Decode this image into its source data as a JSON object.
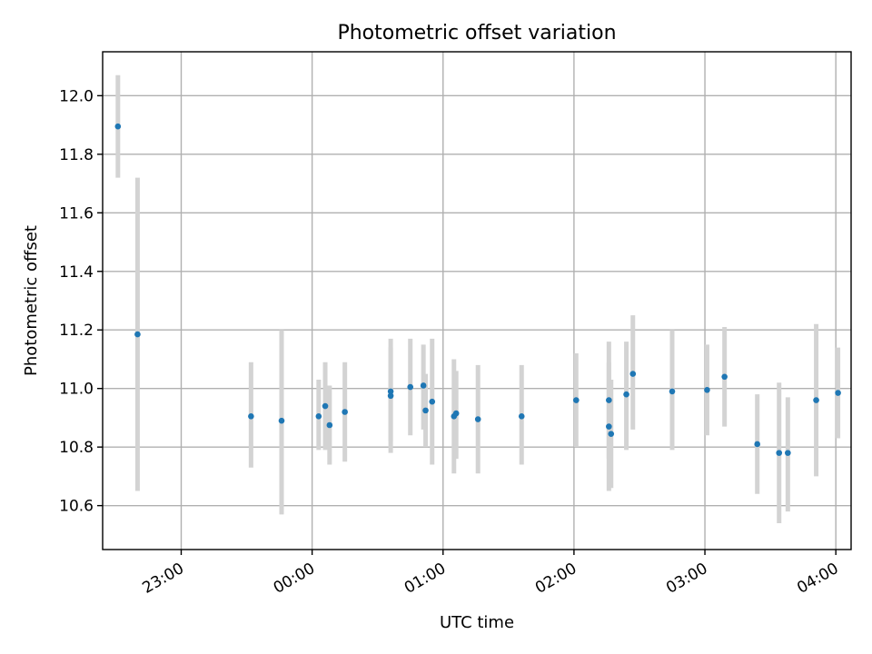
{
  "chart_data": {
    "type": "scatter",
    "title": "Photometric offset variation",
    "xlabel": "UTC time",
    "ylabel": "Photometric offset",
    "xlim": [
      "22:24",
      "04:07"
    ],
    "ylim": [
      10.45,
      12.15
    ],
    "x_ticks": [
      "23:00",
      "00:00",
      "01:00",
      "02:00",
      "03:00",
      "04:00"
    ],
    "y_ticks": [
      10.6,
      10.8,
      11.0,
      11.2,
      11.4,
      11.6,
      11.8,
      12.0
    ],
    "grid": true,
    "errorbar_color": "#d3d3d3",
    "marker_color": "#1f77b4",
    "points": [
      {
        "x": "22:31",
        "y": 11.895,
        "ylo": 11.72,
        "yhi": 12.07
      },
      {
        "x": "22:40",
        "y": 11.185,
        "ylo": 10.65,
        "yhi": 11.72
      },
      {
        "x": "23:32",
        "y": 10.905,
        "ylo": 10.73,
        "yhi": 11.09
      },
      {
        "x": "23:46",
        "y": 10.89,
        "ylo": 10.57,
        "yhi": 11.2
      },
      {
        "x": "00:03",
        "y": 10.905,
        "ylo": 10.79,
        "yhi": 11.03
      },
      {
        "x": "00:06",
        "y": 10.94,
        "ylo": 10.79,
        "yhi": 11.09
      },
      {
        "x": "00:08",
        "y": 10.875,
        "ylo": 10.74,
        "yhi": 11.01
      },
      {
        "x": "00:15",
        "y": 10.92,
        "ylo": 10.75,
        "yhi": 11.09
      },
      {
        "x": "00:36",
        "y": 10.975,
        "ylo": 10.78,
        "yhi": 11.17
      },
      {
        "x": "00:36",
        "y": 10.99,
        "ylo": 10.82,
        "yhi": 11.14
      },
      {
        "x": "00:45",
        "y": 11.005,
        "ylo": 10.84,
        "yhi": 11.17
      },
      {
        "x": "00:51",
        "y": 11.01,
        "ylo": 10.86,
        "yhi": 11.15
      },
      {
        "x": "00:52",
        "y": 10.925,
        "ylo": 10.8,
        "yhi": 11.05
      },
      {
        "x": "00:55",
        "y": 10.955,
        "ylo": 10.74,
        "yhi": 11.17
      },
      {
        "x": "01:05",
        "y": 10.905,
        "ylo": 10.71,
        "yhi": 11.1
      },
      {
        "x": "01:06",
        "y": 10.915,
        "ylo": 10.76,
        "yhi": 11.06
      },
      {
        "x": "01:16",
        "y": 10.895,
        "ylo": 10.71,
        "yhi": 11.08
      },
      {
        "x": "01:36",
        "y": 10.905,
        "ylo": 10.74,
        "yhi": 11.08
      },
      {
        "x": "02:01",
        "y": 10.96,
        "ylo": 10.8,
        "yhi": 11.12
      },
      {
        "x": "02:16",
        "y": 10.96,
        "ylo": 10.76,
        "yhi": 11.16
      },
      {
        "x": "02:16",
        "y": 10.87,
        "ylo": 10.65,
        "yhi": 11.09
      },
      {
        "x": "02:17",
        "y": 10.845,
        "ylo": 10.66,
        "yhi": 11.03
      },
      {
        "x": "02:24",
        "y": 10.98,
        "ylo": 10.79,
        "yhi": 11.16
      },
      {
        "x": "02:27",
        "y": 11.05,
        "ylo": 10.86,
        "yhi": 11.25
      },
      {
        "x": "02:45",
        "y": 10.99,
        "ylo": 10.79,
        "yhi": 11.2
      },
      {
        "x": "03:01",
        "y": 10.995,
        "ylo": 10.84,
        "yhi": 11.15
      },
      {
        "x": "03:09",
        "y": 11.04,
        "ylo": 10.87,
        "yhi": 11.21
      },
      {
        "x": "03:24",
        "y": 10.81,
        "ylo": 10.64,
        "yhi": 10.98
      },
      {
        "x": "03:34",
        "y": 10.78,
        "ylo": 10.54,
        "yhi": 11.02
      },
      {
        "x": "03:38",
        "y": 10.78,
        "ylo": 10.58,
        "yhi": 10.97
      },
      {
        "x": "03:51",
        "y": 10.96,
        "ylo": 10.7,
        "yhi": 11.22
      },
      {
        "x": "04:01",
        "y": 10.985,
        "ylo": 10.83,
        "yhi": 11.14
      }
    ]
  }
}
